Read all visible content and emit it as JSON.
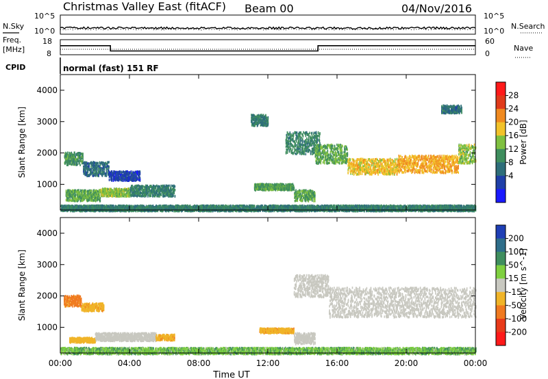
{
  "header": {
    "station": "Christmas Valley East (fitACF)",
    "beam": "Beam 00",
    "date": "04/Nov/2016"
  },
  "left_labels": {
    "nsky": "N.Sky",
    "freq_line1": "Freq.",
    "freq_line2": "[MHz]",
    "cpid": "CPID"
  },
  "right_labels": {
    "nsearch": "N.Search",
    "nave": "Nave"
  },
  "noise_panel": {
    "tick_top": "10^5",
    "tick_bottom": "10^0"
  },
  "freq_panel": {
    "tick_top_left": "18",
    "tick_bottom_left": "8",
    "tick_top_right": "60",
    "tick_bottom_right": "0"
  },
  "cpid_text": "normal (fast) 151 RF",
  "x_axis": {
    "label": "Time UT",
    "ticks": [
      "00:00",
      "04:00",
      "08:00",
      "12:00",
      "16:00",
      "20:00",
      "00:00"
    ]
  },
  "y_axis": {
    "label": "Slant Range [km]",
    "ticks": [
      "1000",
      "2000",
      "3000",
      "4000"
    ]
  },
  "power_colorbar": {
    "label": "Power [dB]",
    "ticks": [
      "4",
      "8",
      "12",
      "16",
      "20",
      "24",
      "28"
    ],
    "colors": [
      "#1a1aff",
      "#1f3fa8",
      "#2e6e7a",
      "#3f8e5e",
      "#7fc040",
      "#f2c22a",
      "#f08a20",
      "#e03a1a",
      "#ff1a1a"
    ]
  },
  "velocity_colorbar": {
    "label": "Velocity [m s^-1]",
    "ticks": [
      "200",
      "100",
      "50",
      "15",
      "-15",
      "-50",
      "-100",
      "-200"
    ],
    "colors": [
      "#1f3fb5",
      "#2e6e8a",
      "#3f8e5e",
      "#7fd040",
      "#c8c8c0",
      "#f0b428",
      "#f07a20",
      "#e83a1a",
      "#ff1a1a"
    ]
  },
  "chart_data": {
    "type": "heatmap",
    "x_range_hours": [
      0,
      24
    ],
    "y_range_km": [
      180,
      4500
    ],
    "freq_trace_mhz": [
      {
        "from": 0,
        "to": 2.9,
        "value": 14
      },
      {
        "from": 2.9,
        "to": 14.9,
        "value": 10.5
      },
      {
        "from": 14.9,
        "to": 24,
        "value": 14
      }
    ],
    "power_regions": [
      {
        "t0": 0.2,
        "t1": 1.3,
        "r0": 1650,
        "r1": 2050,
        "level": 12
      },
      {
        "t0": 1.3,
        "t1": 2.8,
        "r0": 1300,
        "r1": 1750,
        "level": 8
      },
      {
        "t0": 2.8,
        "t1": 4.6,
        "r0": 1150,
        "r1": 1450,
        "level": 4
      },
      {
        "t0": 0.3,
        "t1": 2.3,
        "r0": 500,
        "r1": 850,
        "level": 14
      },
      {
        "t0": 2.3,
        "t1": 4.0,
        "r0": 650,
        "r1": 900,
        "level": 16
      },
      {
        "t0": 4.0,
        "t1": 6.6,
        "r0": 650,
        "r1": 1000,
        "level": 10
      },
      {
        "t0": 11.2,
        "t1": 13.5,
        "r0": 850,
        "r1": 1050,
        "level": 13
      },
      {
        "t0": 13.5,
        "t1": 14.7,
        "r0": 500,
        "r1": 850,
        "level": 14
      },
      {
        "t0": 11.0,
        "t1": 12.0,
        "r0": 2900,
        "r1": 3250,
        "level": 9
      },
      {
        "t0": 13.0,
        "t1": 15.0,
        "r0": 2000,
        "r1": 2700,
        "level": 11
      },
      {
        "t0": 14.7,
        "t1": 16.6,
        "r0": 1700,
        "r1": 2300,
        "level": 14
      },
      {
        "t0": 16.6,
        "t1": 19.5,
        "r0": 1350,
        "r1": 1850,
        "level": 20
      },
      {
        "t0": 19.5,
        "t1": 23.0,
        "r0": 1400,
        "r1": 1950,
        "level": 22
      },
      {
        "t0": 23.0,
        "t1": 24.0,
        "r0": 1700,
        "r1": 2300,
        "level": 16
      },
      {
        "t0": 22.0,
        "t1": 23.2,
        "r0": 3300,
        "r1": 3550,
        "level": 8
      },
      {
        "t0": 0.0,
        "t1": 24.0,
        "r0": 180,
        "r1": 360,
        "level": 10
      }
    ],
    "velocity_regions": [
      {
        "t0": 0.2,
        "t1": 1.2,
        "r0": 1700,
        "r1": 2050,
        "v": -60
      },
      {
        "t0": 1.2,
        "t1": 2.5,
        "r0": 1550,
        "r1": 1800,
        "v": -40
      },
      {
        "t0": 0.5,
        "t1": 2.0,
        "r0": 550,
        "r1": 700,
        "v": -30
      },
      {
        "t0": 2.0,
        "t1": 5.5,
        "r0": 600,
        "r1": 850,
        "v": 0
      },
      {
        "t0": 5.5,
        "t1": 6.6,
        "r0": 620,
        "r1": 800,
        "v": -40
      },
      {
        "t0": 11.5,
        "t1": 13.5,
        "r0": 850,
        "r1": 1000,
        "v": -40
      },
      {
        "t0": 13.5,
        "t1": 14.7,
        "r0": 500,
        "r1": 850,
        "v": 0
      },
      {
        "t0": 13.5,
        "t1": 15.5,
        "r0": 2000,
        "r1": 2700,
        "v": 0
      },
      {
        "t0": 15.5,
        "t1": 24.0,
        "r0": 1350,
        "r1": 2300,
        "v": 0
      },
      {
        "t0": 0.0,
        "t1": 24.0,
        "r0": 180,
        "r1": 380,
        "v": 25
      }
    ]
  }
}
